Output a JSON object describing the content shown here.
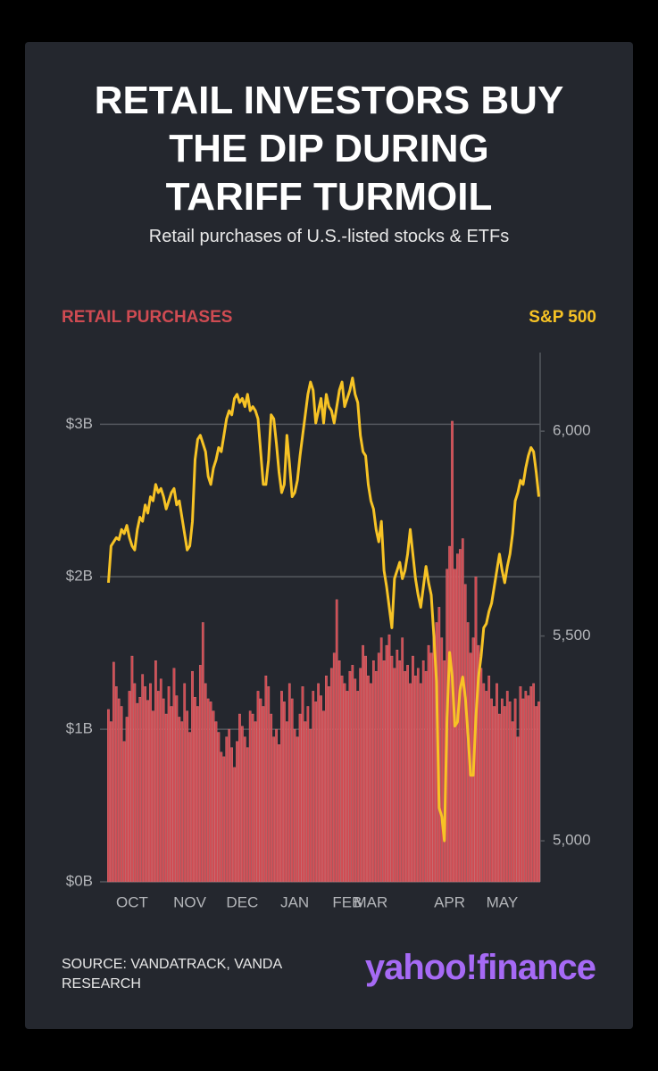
{
  "chart_data": {
    "type": "bar",
    "title": [
      "RETAIL INVESTORS BUY",
      "THE DIP DURING",
      "TARIFF TURMOIL"
    ],
    "subtitle": "Retail purchases of U.S.-listed stocks & ETFs",
    "source": "SOURCE: VANDATRACK, VANDA RESEARCH",
    "logo": "yahoo!finance",
    "categories": [
      null,
      null,
      null,
      null,
      null,
      null,
      null,
      null,
      null,
      "OCT",
      null,
      null,
      null,
      null,
      null,
      null,
      null,
      null,
      null,
      null,
      null,
      null,
      null,
      null,
      null,
      null,
      null,
      null,
      null,
      null,
      null,
      "NOV",
      null,
      null,
      null,
      null,
      null,
      null,
      null,
      null,
      null,
      null,
      null,
      null,
      null,
      null,
      null,
      null,
      null,
      null,
      null,
      "DEC",
      null,
      null,
      null,
      null,
      null,
      null,
      null,
      null,
      null,
      null,
      null,
      null,
      null,
      null,
      null,
      null,
      null,
      null,
      null,
      "JAN",
      null,
      null,
      null,
      null,
      null,
      null,
      null,
      null,
      null,
      null,
      null,
      null,
      null,
      null,
      null,
      null,
      null,
      null,
      null,
      "FEB",
      null,
      null,
      null,
      null,
      null,
      null,
      null,
      null,
      "MAR",
      null,
      null,
      null,
      null,
      null,
      null,
      null,
      null,
      null,
      null,
      null,
      null,
      null,
      null,
      null,
      null,
      null,
      null,
      null,
      null,
      null,
      null,
      null,
      null,
      null,
      null,
      null,
      null,
      null,
      "APR",
      null,
      null,
      null,
      null,
      null,
      null,
      null,
      null,
      null,
      null,
      null,
      null,
      null,
      null,
      null,
      null,
      null,
      null,
      null,
      "MAY",
      null,
      null,
      null,
      null,
      null,
      null,
      null,
      null,
      null,
      null,
      null,
      null,
      null,
      null
    ],
    "ylim": [
      0,
      3.47
    ],
    "yticks": [
      {
        "value": 0,
        "label": "$0B"
      },
      {
        "value": 1,
        "label": "$1B"
      },
      {
        "value": 2,
        "label": "$2B"
      },
      {
        "value": 3,
        "label": "$3B"
      }
    ],
    "y2lim": [
      4900,
      6192
    ],
    "y2ticks": [
      {
        "value": 5000,
        "label": "5,000"
      },
      {
        "value": 5500,
        "label": "5,500"
      },
      {
        "value": 6000,
        "label": "6,000"
      }
    ],
    "grid": true,
    "series": [
      {
        "name": "RETAIL PURCHASES",
        "type": "bar",
        "color": "#cf4b52",
        "values": [
          1.13,
          1.05,
          1.44,
          1.28,
          1.2,
          1.15,
          0.92,
          1.08,
          1.25,
          1.48,
          1.3,
          1.17,
          1.21,
          1.36,
          1.28,
          1.19,
          1.3,
          1.12,
          1.45,
          1.25,
          1.33,
          1.2,
          1.1,
          1.28,
          1.15,
          1.4,
          1.22,
          1.08,
          1.05,
          1.3,
          1.12,
          0.98,
          1.38,
          1.21,
          1.15,
          1.42,
          1.7,
          1.3,
          1.2,
          1.18,
          1.12,
          1.05,
          0.98,
          0.85,
          0.82,
          0.95,
          1.0,
          0.88,
          0.75,
          0.92,
          1.1,
          1.02,
          0.95,
          0.88,
          1.12,
          1.1,
          1.05,
          1.25,
          1.2,
          1.15,
          1.35,
          1.28,
          1.1,
          0.95,
          1.0,
          0.9,
          1.25,
          1.18,
          1.05,
          1.3,
          1.2,
          1.0,
          0.95,
          1.1,
          1.28,
          1.05,
          1.15,
          1.0,
          1.25,
          1.18,
          1.3,
          1.22,
          1.12,
          1.35,
          1.28,
          1.4,
          1.5,
          1.85,
          1.45,
          1.35,
          1.3,
          1.25,
          1.38,
          1.42,
          1.33,
          1.25,
          1.4,
          1.55,
          1.48,
          1.35,
          1.3,
          1.45,
          1.38,
          1.5,
          1.6,
          1.45,
          1.55,
          1.62,
          1.48,
          1.4,
          1.52,
          1.45,
          1.6,
          1.38,
          1.42,
          1.3,
          1.48,
          1.35,
          1.4,
          1.3,
          1.45,
          1.38,
          1.55,
          1.5,
          1.6,
          1.7,
          1.8,
          1.6,
          1.45,
          2.05,
          2.2,
          3.02,
          2.05,
          2.15,
          2.18,
          2.25,
          1.95,
          1.7,
          1.5,
          1.6,
          2.0,
          1.55,
          1.4,
          1.3,
          1.25,
          1.35,
          1.2,
          1.15,
          1.3,
          1.1,
          1.2,
          1.15,
          1.25,
          1.18,
          1.05,
          1.2,
          0.95,
          1.28,
          1.2,
          1.25,
          1.22,
          1.28,
          1.3,
          1.15,
          1.18
        ]
      },
      {
        "name": "S&P 500",
        "type": "line",
        "axis": "y2",
        "color": "#f7c325",
        "values": [
          5630,
          5720,
          5730,
          5740,
          5735,
          5760,
          5750,
          5770,
          5740,
          5720,
          5710,
          5760,
          5790,
          5780,
          5820,
          5800,
          5840,
          5830,
          5870,
          5850,
          5860,
          5840,
          5810,
          5830,
          5850,
          5860,
          5820,
          5830,
          5790,
          5750,
          5710,
          5720,
          5780,
          5930,
          5980,
          5990,
          5970,
          5950,
          5890,
          5870,
          5910,
          5930,
          5960,
          5950,
          5990,
          6030,
          6050,
          6040,
          6080,
          6090,
          6070,
          6080,
          6060,
          6090,
          6050,
          6060,
          6050,
          6030,
          5950,
          5870,
          5870,
          5930,
          6040,
          6030,
          5970,
          5900,
          5850,
          5870,
          5990,
          5920,
          5840,
          5850,
          5880,
          5940,
          5990,
          6040,
          6090,
          6120,
          6100,
          6020,
          6050,
          6080,
          6020,
          6090,
          6060,
          6050,
          6020,
          6060,
          6100,
          6120,
          6060,
          6080,
          6100,
          6130,
          6090,
          6070,
          5990,
          5950,
          5940,
          5870,
          5830,
          5810,
          5760,
          5730,
          5780,
          5660,
          5620,
          5570,
          5520,
          5640,
          5660,
          5680,
          5640,
          5660,
          5700,
          5760,
          5700,
          5640,
          5600,
          5570,
          5620,
          5670,
          5630,
          5600,
          5500,
          5390,
          5080,
          5060,
          5000,
          5300,
          5460,
          5400,
          5280,
          5290,
          5370,
          5400,
          5350,
          5260,
          5160,
          5160,
          5300,
          5400,
          5450,
          5520,
          5530,
          5560,
          5580,
          5620,
          5660,
          5700,
          5660,
          5630,
          5670,
          5700,
          5750,
          5830,
          5850,
          5880,
          5870,
          5910,
          5940,
          5960,
          5950,
          5900,
          5840
        ]
      }
    ]
  }
}
